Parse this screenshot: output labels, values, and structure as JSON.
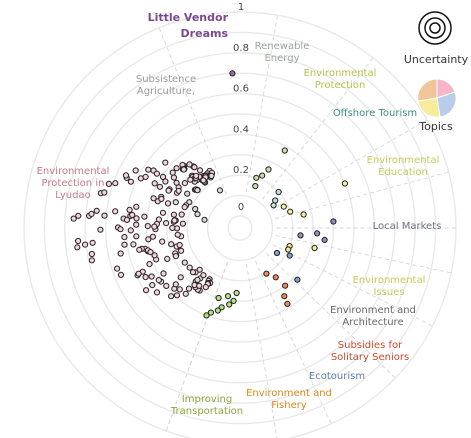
{
  "chart_data": {
    "type": "scatter",
    "title": "Little Vendor Dreams",
    "radial_ticks": [
      "0",
      "0.2",
      "0.4",
      "0.6",
      "0.8",
      "1"
    ],
    "legend": [
      {
        "label": "Uncertainty",
        "icon": "concentric-circles-icon"
      },
      {
        "label": "Topics",
        "icon": "pie-icon"
      }
    ],
    "categories": [
      {
        "name": "Little Vendor Dreams",
        "color": "#7a4a8e"
      },
      {
        "name": "Renewable Energy",
        "color": "#9aa79a"
      },
      {
        "name": "Environmental Protection",
        "color": "#b7c34a"
      },
      {
        "name": "Offshore Tourism",
        "color": "#3d8f86"
      },
      {
        "name": "Environmental Education",
        "color": "#c5c95a"
      },
      {
        "name": "Local Markets",
        "color": "#6d6d86"
      },
      {
        "name": "Environmental Issues",
        "color": "#c7c95a"
      },
      {
        "name": "Environment and Architecture",
        "color": "#666666"
      },
      {
        "name": "Subsidies for Solitary Seniors",
        "color": "#c94a2d"
      },
      {
        "name": "Ecotourism",
        "color": "#5b7ea6"
      },
      {
        "name": "Environment and Fishery",
        "color": "#d8881c"
      },
      {
        "name": "Improving Transportation",
        "color": "#8aa63a"
      },
      {
        "name": "Environmental Protection in Lyudao",
        "color": "#c27b88"
      },
      {
        "name": "Subsistence Agriculture,",
        "color": "#9a9a9a"
      }
    ],
    "series": [
      {
        "name": "Little Vendor Dreams",
        "color": "#9b6bb0",
        "points": [
          [
            92.8,
            0.7
          ]
        ]
      },
      {
        "name": "Subsistence Agriculture,",
        "color": "#d8d8d8",
        "points": [
          [
            132,
            0.35
          ],
          [
            147,
            0.25
          ],
          [
            157,
            0.18
          ],
          [
            153,
            0.22
          ],
          [
            162,
            0.16
          ],
          [
            167,
            0.12
          ],
          [
            118,
            0.15
          ]
        ]
      },
      {
        "name": "Renewable Energy",
        "color": "#c9e0a8",
        "points": [
          [
            60,
            0.38
          ],
          [
            64,
            0.26
          ],
          [
            67,
            0.22
          ],
          [
            70,
            0.16
          ],
          [
            72,
            0.2
          ]
        ]
      },
      {
        "name": "Offshore Tourism",
        "color": "#bfe3d8",
        "points": [
          [
            43,
            0.2
          ],
          [
            38,
            0.16
          ],
          [
            34,
            0.14
          ]
        ]
      },
      {
        "name": "Environmental Education",
        "color": "#f7f19a",
        "points": [
          [
            26,
            0.18
          ],
          [
            18,
            0.2
          ],
          [
            23,
            0.5
          ],
          [
            12,
            0.26
          ]
        ]
      },
      {
        "name": "Local Markets",
        "color": "#8e8fc5",
        "points": [
          [
            4,
            0.4
          ],
          [
            -4,
            0.32
          ],
          [
            -7,
            0.24
          ],
          [
            -8,
            0.36
          ]
        ]
      },
      {
        "name": "Environmental Issues",
        "color": "#f2ec95",
        "points": [
          [
            -15,
            0.32
          ],
          [
            -20,
            0.2
          ],
          [
            -24,
            0.2
          ]
        ]
      },
      {
        "name": "Environment and Architecture",
        "color": "#7f9fcf",
        "points": [
          [
            -29,
            0.22
          ],
          [
            -34,
            0.16
          ],
          [
            -42,
            0.32
          ]
        ]
      },
      {
        "name": "Subsidies for Solitary Seniors",
        "color": "#ef8a52",
        "points": [
          [
            -52,
            0.3
          ],
          [
            -54,
            0.24
          ],
          [
            -57,
            0.34
          ],
          [
            -58,
            0.38
          ],
          [
            -60,
            0.2
          ]
        ]
      },
      {
        "name": "Improving Transportation",
        "color": "#b3e083",
        "points": [
          [
            -93,
            0.26
          ],
          [
            -95,
            0.3
          ],
          [
            -98,
            0.32
          ],
          [
            -100,
            0.28
          ],
          [
            -103,
            0.34
          ],
          [
            -105,
            0.36
          ],
          [
            -107,
            0.3
          ],
          [
            -109,
            0.38
          ],
          [
            -111,
            0.4
          ]
        ]
      }
    ],
    "cluster": {
      "name": "Environmental Protection in Lyudao",
      "color": "#f4d3dc",
      "start_deg": 117,
      "end_deg": 245,
      "r_min": 0.1,
      "r_max": 0.8,
      "count": 190
    },
    "grid": true
  }
}
